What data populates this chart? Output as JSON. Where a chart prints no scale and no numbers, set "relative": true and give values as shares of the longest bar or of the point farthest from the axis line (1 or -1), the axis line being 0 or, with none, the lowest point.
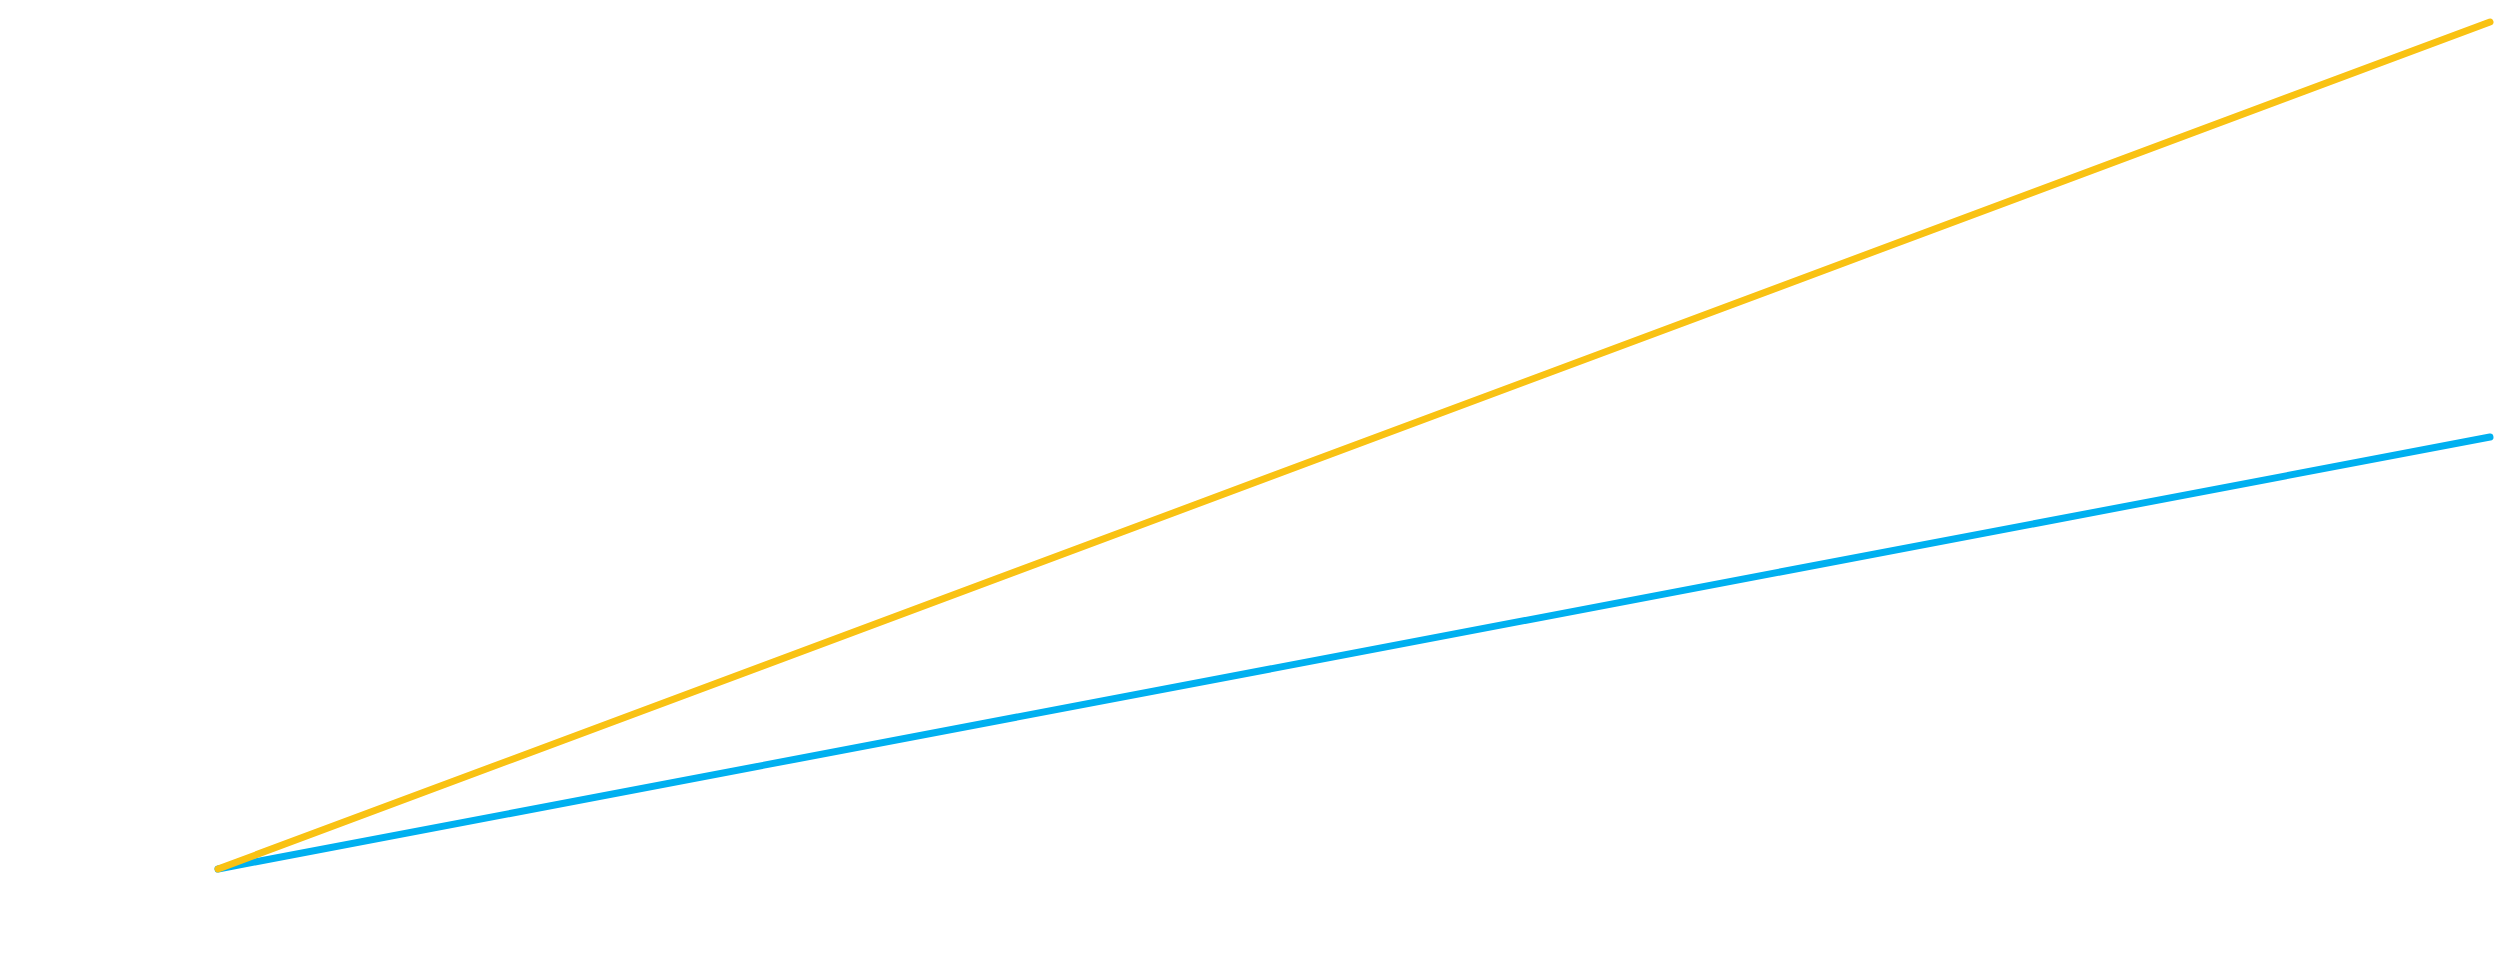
{
  "chart_data": {
    "type": "line",
    "relative": true,
    "categories": [
      null,
      null
    ],
    "series": [
      {
        "color": "#00b0f0",
        "values": [
          0,
          0.51
        ]
      },
      {
        "color": "#f9c213",
        "values": [
          0,
          1
        ]
      }
    ]
  }
}
